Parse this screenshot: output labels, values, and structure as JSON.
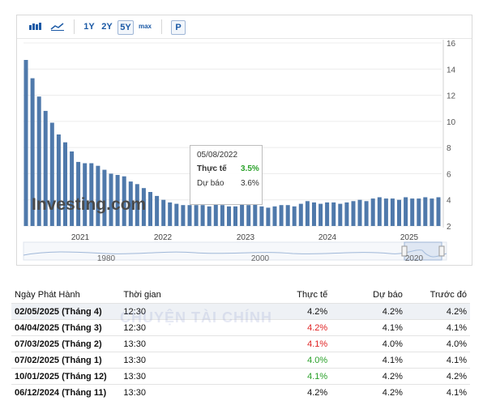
{
  "toolbar": {
    "ranges": [
      "1Y",
      "2Y",
      "5Y",
      "max"
    ],
    "selected_range": "5Y",
    "print_label": "P"
  },
  "chart_data": {
    "type": "bar",
    "series_color": "#4f79ab",
    "y_ticks": [
      2,
      4,
      6,
      8,
      10,
      12,
      14,
      16
    ],
    "ylim": [
      2,
      16
    ],
    "x_tick_labels": [
      "2021",
      "2022",
      "2023",
      "2024",
      "2025"
    ],
    "values": [
      14.7,
      13.3,
      11.9,
      10.8,
      9.9,
      9.0,
      8.4,
      7.7,
      6.9,
      6.8,
      6.8,
      6.6,
      6.3,
      6.0,
      5.9,
      5.8,
      5.4,
      5.2,
      4.9,
      4.6,
      4.3,
      4.0,
      3.8,
      3.7,
      3.6,
      3.6,
      3.6,
      3.6,
      3.5,
      3.7,
      3.6,
      3.5,
      3.5,
      3.7,
      3.6,
      3.7,
      3.5,
      3.4,
      3.5,
      3.6,
      3.6,
      3.5,
      3.7,
      3.9,
      3.8,
      3.7,
      3.8,
      3.8,
      3.7,
      3.8,
      3.9,
      4.0,
      3.9,
      4.1,
      4.2,
      4.1,
      4.1,
      4.0,
      4.2,
      4.1,
      4.1,
      4.2,
      4.1,
      4.2
    ],
    "tooltip": {
      "date": "05/08/2022",
      "actual_label": "Thực tế",
      "actual_value": "3.5%",
      "forecast_label": "Dự báo",
      "forecast_value": "3.6%"
    },
    "watermark": "Investing.com",
    "navigator_labels": [
      "1980",
      "2000",
      "2020"
    ]
  },
  "table": {
    "headers": [
      "Ngày Phát Hành",
      "Thời gian",
      "Thực tế",
      "Dự báo",
      "Trước đó"
    ],
    "rows": [
      {
        "date": "02/05/2025 (Tháng 4)",
        "time": "12:30",
        "actual": "4.2%",
        "forecast": "4.2%",
        "previous": "4.2%",
        "actual_color": "#111111"
      },
      {
        "date": "04/04/2025 (Tháng 3)",
        "time": "12:30",
        "actual": "4.2%",
        "forecast": "4.1%",
        "previous": "4.1%",
        "actual_color": "#e02424"
      },
      {
        "date": "07/03/2025 (Tháng 2)",
        "time": "13:30",
        "actual": "4.1%",
        "forecast": "4.0%",
        "previous": "4.0%",
        "actual_color": "#e02424"
      },
      {
        "date": "07/02/2025 (Tháng 1)",
        "time": "13:30",
        "actual": "4.0%",
        "forecast": "4.1%",
        "previous": "4.1%",
        "actual_color": "#2aa12a"
      },
      {
        "date": "10/01/2025 (Tháng 12)",
        "time": "13:30",
        "actual": "4.1%",
        "forecast": "4.2%",
        "previous": "4.2%",
        "actual_color": "#2aa12a"
      },
      {
        "date": "06/12/2024 (Tháng 11)",
        "time": "13:30",
        "actual": "4.2%",
        "forecast": "4.2%",
        "previous": "4.1%",
        "actual_color": "#111111"
      }
    ]
  },
  "overlay_text": "CHUYỆN TÀI CHÍNH"
}
